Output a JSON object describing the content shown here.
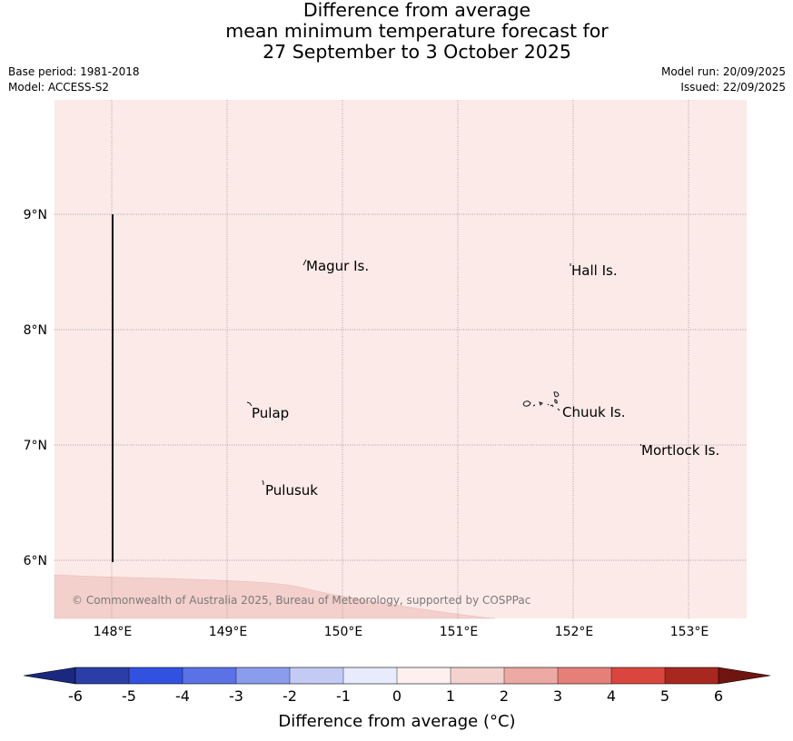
{
  "title": {
    "line1": "Difference from average",
    "line2": "mean minimum temperature forecast for",
    "line3": "27 September to 3 October 2025"
  },
  "meta_left": {
    "base_period": "Base period: 1981-2018",
    "model": "Model: ACCESS-S2"
  },
  "meta_right": {
    "model_run": "Model run: 20/09/2025",
    "issued": "Issued: 22/09/2025"
  },
  "map": {
    "lat_labels": [
      "9°N",
      "8°N",
      "7°N",
      "6°N"
    ],
    "lon_labels": [
      "148°E",
      "149°E",
      "150°E",
      "151°E",
      "152°E",
      "153°E"
    ],
    "places": [
      "Magur Is.",
      "Hall Is.",
      "Pulap",
      "Chuuk Is.",
      "Mortlock Is.",
      "Pulusuk"
    ],
    "copyright": "© Commonwealth of Australia 2025, Bureau of Meteorology, supported by COSPPac",
    "background_color": "#fbeae8",
    "warm_band_color": "#f3d0cc"
  },
  "colorbar": {
    "ticks": [
      "-6",
      "-5",
      "-4",
      "-3",
      "-2",
      "-1",
      "0",
      "1",
      "2",
      "3",
      "4",
      "5",
      "6"
    ],
    "colors": [
      "#2b3ea8",
      "#3152e0",
      "#5a72e6",
      "#8a9ded",
      "#c3cbf4",
      "#e8ebfb",
      "#fdf0ef",
      "#f4d2ce",
      "#eda9a3",
      "#e67f77",
      "#da463d",
      "#a8271f"
    ],
    "low_extend_color": "#1a2880",
    "high_extend_color": "#6e1510",
    "label": "Difference from average (°C)"
  }
}
